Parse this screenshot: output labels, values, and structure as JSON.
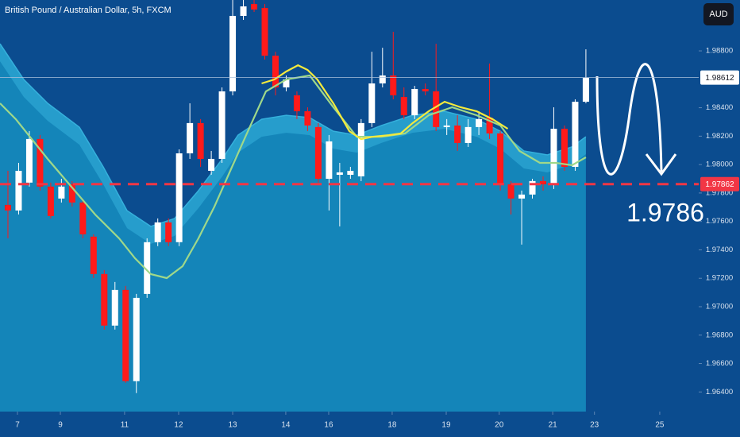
{
  "chart_data": {
    "type": "candlestick",
    "title": "British Pound / Australian Dollar, 5h, FXCM",
    "currency": "AUD",
    "xlim": [
      -0.74,
      64.54
    ],
    "ylim": [
      1.96262,
      1.99158
    ],
    "xticks": [
      {
        "value": 0.89,
        "label": "7"
      },
      {
        "value": 4.9,
        "label": "9"
      },
      {
        "value": 10.9,
        "label": "11"
      },
      {
        "value": 15.95,
        "label": "12"
      },
      {
        "value": 21,
        "label": "13"
      },
      {
        "value": 25.96,
        "label": "14"
      },
      {
        "value": 29.97,
        "label": "16"
      },
      {
        "value": 35.9,
        "label": "18"
      },
      {
        "value": 40.95,
        "label": "19"
      },
      {
        "value": 45.9,
        "label": "20"
      },
      {
        "value": 50.9,
        "label": "21"
      },
      {
        "value": 54.8,
        "label": "23"
      },
      {
        "value": 60.9,
        "label": "25"
      }
    ],
    "yticks": [
      {
        "value": 1.988,
        "label": "1.98800"
      },
      {
        "value": 1.984,
        "label": "1.98400"
      },
      {
        "value": 1.982,
        "label": "1.98200"
      },
      {
        "value": 1.98,
        "label": "1.98000"
      },
      {
        "value": 1.978,
        "label": "1.97800"
      },
      {
        "value": 1.976,
        "label": "1.97600"
      },
      {
        "value": 1.974,
        "label": "1.97400"
      },
      {
        "value": 1.972,
        "label": "1.97200"
      },
      {
        "value": 1.97,
        "label": "1.97000"
      },
      {
        "value": 1.968,
        "label": "1.96800"
      },
      {
        "value": 1.966,
        "label": "1.96600"
      },
      {
        "value": 1.964,
        "label": "1.96400"
      }
    ],
    "up_color": "#ffffff",
    "down_color": "#ff1a1a",
    "open": [
      1.97716,
      1.97677,
      1.97873,
      1.9818,
      1.97845,
      1.97761,
      1.97861,
      1.97733,
      1.97493,
      1.9723,
      1.96867,
      1.97118,
      1.96476,
      1.9709,
      1.97454,
      1.97593,
      1.97454,
      1.98079,
      1.98292,
      1.97956,
      1.9804,
      1.98515,
      1.99046,
      1.9913,
      1.99102,
      1.98766,
      1.98543,
      1.98487,
      1.98375,
      1.98264,
      1.979,
      1.97928,
      1.97928,
      1.97917,
      1.98292,
      1.98571,
      1.98627,
      1.98476,
      1.98347,
      1.98532,
      1.98515,
      1.98264,
      1.98275,
      1.98152,
      1.98264,
      1.98331,
      1.98219,
      1.97861,
      1.97761,
      1.97789,
      1.97884,
      1.97861,
      1.98252,
      1.97984,
      1.98442
    ],
    "high": [
      1.97956,
      1.98012,
      1.98236,
      1.98208,
      1.97873,
      1.979,
      1.97884,
      1.97761,
      1.97509,
      1.97258,
      1.97174,
      1.97146,
      1.9709,
      1.97481,
      1.97621,
      1.97621,
      1.98107,
      1.98431,
      1.9832,
      1.98096,
      1.98543,
      1.99158,
      1.99158,
      1.99158,
      1.9913,
      1.98794,
      1.98627,
      1.98515,
      1.98403,
      1.98292,
      1.98208,
      1.98012,
      1.97984,
      1.9832,
      1.98794,
      1.98822,
      1.98934,
      1.98543,
      1.98554,
      1.98571,
      1.9885,
      1.9832,
      1.98347,
      1.9832,
      1.98375,
      1.98711,
      1.98236,
      1.97884,
      1.97817,
      1.979,
      1.97917,
      1.98403,
      1.98275,
      1.98459,
      1.98811
    ],
    "low": [
      1.97481,
      1.97649,
      1.97845,
      1.97817,
      1.97621,
      1.97733,
      1.97705,
      1.97481,
      1.97202,
      1.96839,
      1.96839,
      1.96465,
      1.96392,
      1.97062,
      1.97426,
      1.97426,
      1.97426,
      1.9804,
      1.97984,
      1.97928,
      1.98012,
      1.98487,
      1.99018,
      1.99074,
      1.98739,
      1.98487,
      1.98515,
      1.9832,
      1.98236,
      1.97873,
      1.97677,
      1.97565,
      1.979,
      1.97884,
      1.98264,
      1.98543,
      1.98459,
      1.9832,
      1.9832,
      1.98487,
      1.98236,
      1.98208,
      1.98096,
      1.98124,
      1.98208,
      1.9818,
      1.97817,
      1.97649,
      1.97437,
      1.97761,
      1.97817,
      1.97828,
      1.97956,
      1.97956,
      1.98431
    ],
    "close": [
      1.97677,
      1.97956,
      1.9818,
      1.97845,
      1.97638,
      1.97845,
      1.97733,
      1.97509,
      1.9723,
      1.96867,
      1.97118,
      1.96476,
      1.97062,
      1.97454,
      1.97593,
      1.97454,
      1.98079,
      1.98292,
      1.9804,
      1.9804,
      1.98515,
      1.99046,
      1.99113,
      1.99091,
      1.98766,
      1.98543,
      1.98599,
      1.98375,
      1.98275,
      1.979,
      1.98163,
      1.97945,
      1.97956,
      1.98292,
      1.98571,
      1.98627,
      1.98487,
      1.98347,
      1.98532,
      1.98515,
      1.98264,
      1.98275,
      1.98152,
      1.98264,
      1.9832,
      1.98219,
      1.97861,
      1.97761,
      1.97789,
      1.97884,
      1.97861,
      1.98252,
      1.97984,
      1.98442,
      1.98612
    ],
    "band": {
      "x": [
        -0.74,
        1.48,
        3.71,
        6.68,
        8.9,
        11.13,
        13.35,
        15.58,
        17.8,
        20.03,
        21.5,
        23.7,
        26.0,
        28.2,
        30.4,
        32.6,
        34.9,
        37.8,
        40.8,
        43.8,
        46.0,
        48.2,
        50.4,
        52.7,
        54.0
      ],
      "upper": [
        1.9885,
        1.98599,
        1.98431,
        1.98263,
        1.97984,
        1.97676,
        1.97565,
        1.97621,
        1.97816,
        1.9804,
        1.98207,
        1.98319,
        1.98347,
        1.9833,
        1.98235,
        1.98207,
        1.98275,
        1.98347,
        1.98375,
        1.98319,
        1.98235,
        1.98096,
        1.98068,
        1.98124,
        1.98196
      ],
      "lower": [
        1.98727,
        1.98476,
        1.98308,
        1.9814,
        1.97861,
        1.97553,
        1.97442,
        1.97498,
        1.97693,
        1.97917,
        1.98084,
        1.98196,
        1.98224,
        1.98207,
        1.98112,
        1.98084,
        1.98152,
        1.98224,
        1.98252,
        1.98196,
        1.98112,
        1.97973,
        1.97945,
        1.98001,
        1.98073
      ],
      "color": "#35b0dc",
      "fill": "#1485b9"
    },
    "lines": [
      {
        "color": "#9fd88a",
        "x": [
          -0.74,
          0.74,
          2.23,
          3.71,
          5.93,
          8.16,
          10.39,
          11.87,
          13.35,
          14.84,
          16.32,
          17.8,
          19.29,
          20.77,
          22.26,
          24.1,
          26.0,
          28.2,
          30.4,
          32.6,
          34.9,
          37.1,
          39.3,
          41.5,
          43.8,
          46.0,
          47.8,
          49.7,
          51.2,
          52.7,
          54.0
        ],
        "values": [
          1.98431,
          1.98319,
          1.98179,
          1.9804,
          1.97844,
          1.97648,
          1.97481,
          1.97341,
          1.97229,
          1.97201,
          1.97285,
          1.97481,
          1.97704,
          1.97956,
          1.98207,
          1.98515,
          1.98599,
          1.98627,
          1.98403,
          1.98196,
          1.98196,
          1.98219,
          1.98347,
          1.98403,
          1.98347,
          1.98275,
          1.98096,
          1.98012,
          1.98012,
          1.97995,
          1.98051
        ]
      },
      {
        "color": "#f4ea3c",
        "x": [
          23.7,
          24.9,
          26.0,
          27.1,
          28.0,
          28.9,
          30.4,
          31.9,
          33.0,
          34.1,
          35.6,
          36.7,
          37.8,
          39.3,
          40.8,
          42.3,
          43.8,
          45.3,
          46.7
        ],
        "values": [
          1.98571,
          1.98599,
          1.98655,
          1.98699,
          1.98666,
          1.98599,
          1.98431,
          1.98235,
          1.98179,
          1.98196,
          1.98207,
          1.98219,
          1.98291,
          1.98375,
          1.98442,
          1.98403,
          1.98375,
          1.98319,
          1.98252
        ]
      }
    ],
    "hlines": [
      {
        "value": 1.98612,
        "label": "1.98612",
        "color": "#ffffff",
        "style": "solid"
      },
      {
        "value": 1.97862,
        "label": "1.97862",
        "color": "#f23645",
        "style": "dashed"
      }
    ],
    "annotation": "1.9786"
  }
}
